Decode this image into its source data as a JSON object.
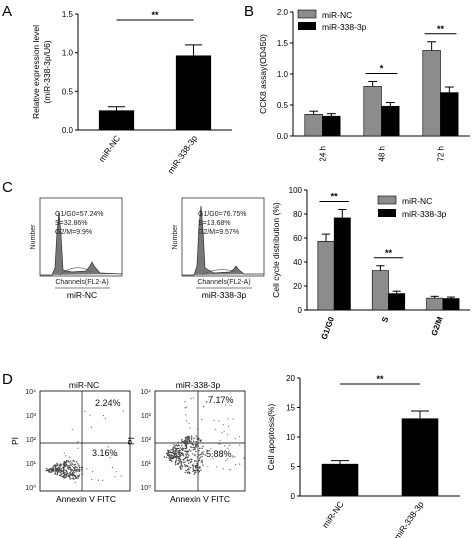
{
  "panels": {
    "A": "A",
    "B": "B",
    "C": "C",
    "D": "D"
  },
  "chart_data": [
    {
      "id": "A",
      "type": "bar",
      "categories": [
        "miR-NC",
        "miR-338-3p"
      ],
      "values": [
        0.25,
        0.96
      ],
      "errors": [
        0.05,
        0.14
      ],
      "colors": [
        "#000000",
        "#000000"
      ],
      "ylabel": "Relative expression level (miR-338-3p/U6)",
      "ylabel_lines": [
        "Relative expression level",
        "(miR-338-3p/U6)"
      ],
      "ylim": [
        0,
        1.5
      ],
      "yticks": [
        "0.0",
        "0.5",
        "1.0",
        "1.5"
      ],
      "significance": "**"
    },
    {
      "id": "B",
      "type": "bar",
      "categories": [
        "24 h",
        "48 h",
        "72 h"
      ],
      "series": [
        {
          "name": "miR-NC",
          "values": [
            0.35,
            0.8,
            1.38
          ],
          "errors": [
            0.05,
            0.08,
            0.14
          ],
          "color": "#8c8c8c"
        },
        {
          "name": "miR-338-3p",
          "values": [
            0.32,
            0.48,
            0.7
          ],
          "errors": [
            0.04,
            0.06,
            0.09
          ],
          "color": "#000000"
        }
      ],
      "ylabel": "CCK8 assay(OD450)",
      "ylim": [
        0,
        2.0
      ],
      "yticks": [
        "0.0",
        "0.5",
        "1.0",
        "1.5",
        "2.0"
      ],
      "significance": [
        "",
        "*",
        "**"
      ],
      "legend": "top-left"
    },
    {
      "id": "C",
      "type": "bar",
      "categories": [
        "G1/G0",
        "S",
        "G2/M"
      ],
      "series": [
        {
          "name": "miR-NC",
          "values": [
            57.24,
            32.86,
            9.9
          ],
          "errors": [
            6,
            4,
            1.5
          ],
          "color": "#8c8c8c"
        },
        {
          "name": "miR-338-3p",
          "values": [
            76.75,
            13.68,
            9.57
          ],
          "errors": [
            7,
            2,
            1.2
          ],
          "color": "#000000"
        }
      ],
      "ylabel": "Cell cycle distribution (%)",
      "ylim": [
        0,
        100
      ],
      "yticks": [
        "0",
        "20",
        "40",
        "60",
        "80",
        "100"
      ],
      "significance": [
        "**",
        "**",
        ""
      ],
      "legend": "top-right"
    },
    {
      "id": "D",
      "type": "bar",
      "categories": [
        "miR-NC",
        "miR-338-3p"
      ],
      "values": [
        5.4,
        13.1
      ],
      "errors": [
        0.6,
        1.3
      ],
      "colors": [
        "#000000",
        "#000000"
      ],
      "ylabel": "Cell apoptosis(%)",
      "ylim": [
        0,
        20
      ],
      "yticks": [
        "0",
        "5",
        "10",
        "15",
        "20"
      ],
      "significance": "**"
    }
  ],
  "flow_cycle": [
    {
      "name": "miR-NC",
      "xlabel": "Channels(FL2-A)",
      "ylabel": "Number",
      "stats": [
        "G1/G0=57.24%",
        "S=32.86%",
        "G2/M=9.9%"
      ]
    },
    {
      "name": "miR-338-3p",
      "xlabel": "Channels(FL2-A)",
      "ylabel": "Number",
      "stats": [
        "G1/G0=76.75%",
        "S=13.68%",
        "G2/M=9.57%"
      ]
    }
  ],
  "flow_apoptosis": [
    {
      "name": "miR-NC",
      "xlabel": "Annexin V FITC",
      "ylabel": "PI",
      "upper_right": "2.24%",
      "lower_right": "3.16%"
    },
    {
      "name": "miR-338-3p",
      "xlabel": "Annexin V FITC",
      "ylabel": "PI",
      "upper_right": "7.17%",
      "lower_right": "5.88%"
    }
  ],
  "log_ticks": [
    "10⁰",
    "10¹",
    "10²",
    "10³",
    "10⁴"
  ]
}
